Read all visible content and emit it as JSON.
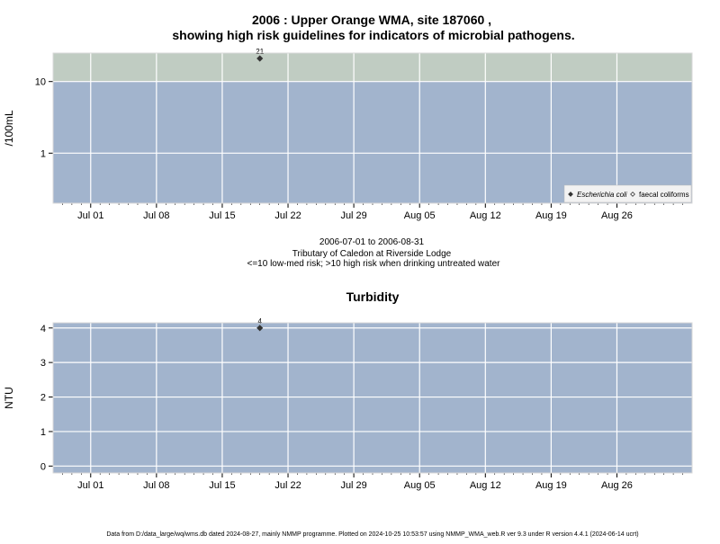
{
  "title_line1": "2006 : Upper Orange WMA, site 187060 ,",
  "title_line2": "showing high risk guidelines for indicators of microbial pathogens.",
  "caption": {
    "period": "2006-07-01 to 2006-08-31",
    "site": "Tributary of Caledon at Riverside Lodge",
    "guideline": "<=10 low-med risk; >10 high risk when drinking untreated water"
  },
  "footer": "Data from D:/data_large/wq/wms.db dated 2024-08-27, mainly NMMP programme. Plotted on 2024-10-25 10:53:57 using NMMP_WMA_web.R ver 9.3 under R version 4.4.1 (2024-06-14 ucrt)",
  "colors": {
    "panel_bg": "#a2b4cd",
    "high_risk_band": "#c0ccc2",
    "grid": "#ffffff",
    "marker": "#333333"
  },
  "chart_data": [
    {
      "type": "scatter",
      "title": "",
      "ylabel": "/100mL",
      "yscale": "log",
      "ylim": [
        0.2,
        25
      ],
      "yticks": [
        1,
        10
      ],
      "ytick_labels": [
        "1",
        "10"
      ],
      "xlim": [
        "2006-06-27",
        "2006-09-03"
      ],
      "xticks": [
        "2006-07-01",
        "2006-07-08",
        "2006-07-15",
        "2006-07-22",
        "2006-07-29",
        "2006-08-05",
        "2006-08-12",
        "2006-08-19",
        "2006-08-26"
      ],
      "xtick_labels": [
        "Jul 01",
        "Jul 08",
        "Jul 15",
        "Jul 22",
        "Jul 29",
        "Aug 05",
        "Aug 12",
        "Aug 19",
        "Aug 26"
      ],
      "high_risk_threshold": 10,
      "grid": true,
      "legend_position": "bottom-right",
      "legend": [
        {
          "label": "Escherichia coli",
          "marker": "filled-diamond",
          "italic": true
        },
        {
          "label": "faecal coliforms",
          "marker": "open-diamond",
          "italic": false
        }
      ],
      "series": [
        {
          "name": "Escherichia coli",
          "marker": "filled-diamond",
          "points": [
            {
              "x": "2006-07-19",
              "y": 21,
              "label": "21"
            }
          ]
        },
        {
          "name": "faecal coliforms",
          "marker": "open-diamond",
          "points": []
        }
      ]
    },
    {
      "type": "scatter",
      "title": "Turbidity",
      "ylabel": "NTU",
      "yscale": "linear",
      "ylim": [
        -0.2,
        4.15
      ],
      "yticks": [
        0,
        1,
        2,
        3,
        4
      ],
      "ytick_labels": [
        "0",
        "1",
        "2",
        "3",
        "4"
      ],
      "xlim": [
        "2006-06-27",
        "2006-09-03"
      ],
      "xticks": [
        "2006-07-01",
        "2006-07-08",
        "2006-07-15",
        "2006-07-22",
        "2006-07-29",
        "2006-08-05",
        "2006-08-12",
        "2006-08-19",
        "2006-08-26"
      ],
      "xtick_labels": [
        "Jul 01",
        "Jul 08",
        "Jul 15",
        "Jul 22",
        "Jul 29",
        "Aug 05",
        "Aug 12",
        "Aug 19",
        "Aug 26"
      ],
      "grid": true,
      "series": [
        {
          "name": "",
          "marker": "filled-diamond",
          "points": [
            {
              "x": "2006-07-19",
              "y": 4,
              "label": "4"
            }
          ]
        }
      ]
    }
  ]
}
